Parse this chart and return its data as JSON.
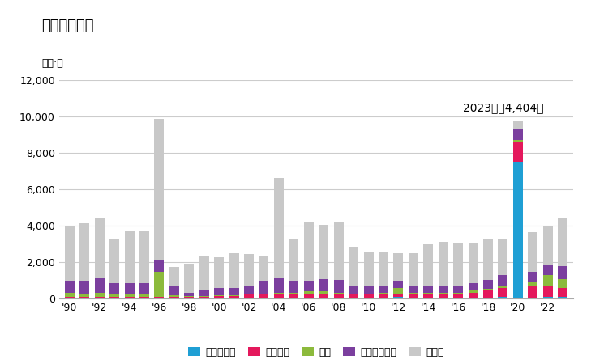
{
  "title": "輸出量の推移",
  "unit_label": "単位:台",
  "annotation": "2023年：4,404台",
  "years": [
    1990,
    1991,
    1992,
    1993,
    1994,
    1995,
    1996,
    1997,
    1998,
    1999,
    2000,
    2001,
    2002,
    2003,
    2004,
    2005,
    2006,
    2007,
    2008,
    2009,
    2010,
    2011,
    2012,
    2013,
    2014,
    2015,
    2016,
    2017,
    2018,
    2019,
    2020,
    2021,
    2022,
    2023
  ],
  "cambodia": [
    50,
    50,
    50,
    50,
    50,
    50,
    50,
    30,
    30,
    30,
    30,
    30,
    30,
    30,
    30,
    30,
    30,
    30,
    30,
    30,
    30,
    30,
    80,
    30,
    30,
    30,
    30,
    30,
    30,
    80,
    7500,
    30,
    80,
    80
  ],
  "vietnam": [
    50,
    50,
    50,
    50,
    50,
    50,
    50,
    50,
    50,
    50,
    100,
    100,
    200,
    200,
    200,
    200,
    200,
    200,
    200,
    200,
    200,
    200,
    200,
    200,
    200,
    200,
    200,
    300,
    400,
    500,
    1100,
    700,
    600,
    500
  ],
  "usa": [
    200,
    150,
    200,
    150,
    150,
    150,
    1350,
    100,
    50,
    50,
    50,
    50,
    50,
    50,
    100,
    100,
    150,
    150,
    100,
    50,
    50,
    100,
    300,
    100,
    100,
    100,
    100,
    100,
    100,
    100,
    100,
    150,
    600,
    500
  ],
  "singapore": [
    700,
    700,
    800,
    600,
    600,
    600,
    700,
    500,
    200,
    300,
    400,
    400,
    400,
    700,
    800,
    600,
    600,
    700,
    700,
    400,
    400,
    400,
    400,
    400,
    400,
    400,
    400,
    400,
    500,
    600,
    600,
    600,
    600,
    700
  ],
  "others": [
    3000,
    3200,
    3300,
    2450,
    2900,
    2900,
    7700,
    1050,
    1600,
    1900,
    1700,
    1900,
    1750,
    1350,
    5500,
    2350,
    3250,
    2950,
    3150,
    2150,
    1900,
    1800,
    1500,
    1750,
    2250,
    2400,
    2350,
    2250,
    2250,
    1950,
    500,
    2150,
    2100,
    2600
  ],
  "colors": {
    "cambodia": "#1f9fd4",
    "vietnam": "#e4185c",
    "usa": "#8cba3c",
    "singapore": "#7b3f9e",
    "others": "#c8c8c8"
  },
  "legend_labels": {
    "cambodia": "カンボジア",
    "vietnam": "ベトナム",
    "usa": "米国",
    "singapore": "シンガポール",
    "others": "その他"
  },
  "ylim": [
    0,
    12000
  ],
  "yticks": [
    0,
    2000,
    4000,
    6000,
    8000,
    10000,
    12000
  ],
  "background_color": "#ffffff",
  "grid_color": "#cccccc"
}
